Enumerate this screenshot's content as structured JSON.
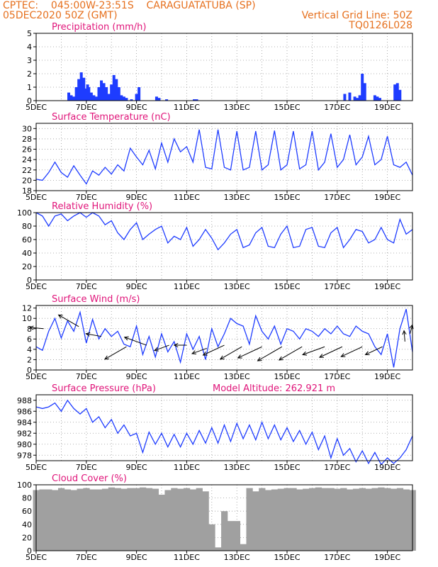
{
  "header": {
    "line1": "CPTEC:    045:00W-23:51S    CARAGUATATUBA (SP)",
    "line2": "05DEC2020 50Z (GMT)",
    "grid_note": "Vertical Grid Line: 50Z",
    "code": "TQ0126L028"
  },
  "colors": {
    "series": "#1e3cff",
    "title": "#e0157a",
    "header": "#e6701e",
    "cloud": "#a0a0a0",
    "frame": "#000000"
  },
  "x_ticks": [
    "5DEC",
    "7DEC",
    "9DEC",
    "11DEC",
    "13DEC",
    "15DEC",
    "17DEC",
    "19DEC"
  ],
  "chart_data": [
    {
      "type": "bar",
      "title": "Precipitation (mm/h)",
      "x": [
        1.3,
        1.4,
        1.5,
        1.6,
        1.7,
        1.8,
        1.9,
        2.0,
        2.05,
        2.1,
        2.2,
        2.3,
        2.4,
        2.5,
        2.6,
        2.7,
        2.8,
        2.9,
        3.0,
        3.1,
        3.2,
        3.3,
        3.4,
        3.5,
        3.6,
        3.8,
        4.0,
        4.1,
        4.8,
        4.9,
        5.2,
        6.3,
        6.4,
        12.3,
        12.5,
        12.7,
        12.8,
        12.9,
        13.0,
        13.1,
        13.5,
        13.6,
        13.7,
        14.3,
        14.4,
        14.5
      ],
      "values": [
        0.6,
        0.4,
        0.3,
        1.0,
        1.6,
        2.1,
        1.7,
        0.9,
        1.2,
        1.0,
        0.6,
        0.4,
        0.3,
        1.0,
        1.5,
        1.3,
        1.0,
        0.5,
        1.2,
        1.9,
        1.6,
        1.0,
        0.4,
        0.3,
        0.2,
        0.1,
        0.5,
        1.0,
        0.3,
        0.2,
        0.1,
        0.1,
        0.1,
        0.5,
        0.6,
        0.3,
        0.2,
        0.4,
        2.0,
        1.3,
        0.4,
        0.3,
        0.2,
        1.2,
        1.3,
        0.8
      ],
      "yticks": [
        "0",
        "1",
        "2",
        "3",
        "4",
        "5"
      ],
      "ylim": [
        0,
        5
      ]
    },
    {
      "type": "line",
      "title": "Surface Temperature (nC)",
      "x": [
        0,
        0.25,
        0.5,
        0.75,
        1.0,
        1.25,
        1.5,
        1.75,
        2.0,
        2.25,
        2.5,
        2.75,
        3.0,
        3.25,
        3.5,
        3.75,
        4.0,
        4.25,
        4.5,
        4.75,
        5.0,
        5.25,
        5.5,
        5.75,
        6.0,
        6.25,
        6.5,
        6.75,
        7.0,
        7.25,
        7.5,
        7.75,
        8.0,
        8.25,
        8.5,
        8.75,
        9.0,
        9.25,
        9.5,
        9.75,
        10.0,
        10.25,
        10.5,
        10.75,
        11.0,
        11.25,
        11.5,
        11.75,
        12.0,
        12.25,
        12.5,
        12.75,
        13.0,
        13.25,
        13.5,
        13.75,
        14.0,
        14.25,
        14.5,
        14.75,
        15.0
      ],
      "values": [
        20.2,
        20.0,
        21.5,
        23.5,
        21.5,
        20.6,
        22.8,
        21.0,
        19.3,
        21.8,
        21.0,
        22.5,
        21.2,
        23.0,
        21.8,
        26.2,
        24.5,
        23.0,
        25.8,
        22.2,
        27.2,
        23.5,
        28.0,
        25.5,
        26.5,
        23.5,
        29.8,
        22.5,
        22.2,
        29.8,
        22.5,
        22.0,
        29.5,
        22.0,
        22.5,
        29.5,
        22.0,
        23.0,
        29.6,
        22.0,
        23.0,
        29.5,
        22.2,
        23.0,
        29.5,
        22.0,
        23.5,
        29.0,
        22.5,
        24.0,
        28.8,
        23.0,
        24.5,
        28.5,
        23.0,
        24.0,
        28.5,
        23.0,
        22.5,
        23.5,
        21.0
      ],
      "yticks": [
        "18",
        "20",
        "22",
        "24",
        "26",
        "28",
        "30"
      ],
      "ylim": [
        18,
        31
      ]
    },
    {
      "type": "line",
      "title": "Relative Humidity (%)",
      "x": [
        0,
        0.25,
        0.5,
        0.75,
        1.0,
        1.25,
        1.5,
        1.75,
        2.0,
        2.25,
        2.5,
        2.75,
        3.0,
        3.25,
        3.5,
        3.75,
        4.0,
        4.25,
        4.5,
        4.75,
        5.0,
        5.25,
        5.5,
        5.75,
        6.0,
        6.25,
        6.5,
        6.75,
        7.0,
        7.25,
        7.5,
        7.75,
        8.0,
        8.25,
        8.5,
        8.75,
        9.0,
        9.25,
        9.5,
        9.75,
        10.0,
        10.25,
        10.5,
        10.75,
        11.0,
        11.25,
        11.5,
        11.75,
        12.0,
        12.25,
        12.5,
        12.75,
        13.0,
        13.25,
        13.5,
        13.75,
        14.0,
        14.25,
        14.5,
        14.75,
        15.0
      ],
      "values": [
        100,
        95,
        80,
        95,
        98,
        88,
        95,
        100,
        93,
        100,
        95,
        82,
        88,
        70,
        60,
        75,
        85,
        60,
        68,
        75,
        80,
        55,
        65,
        60,
        78,
        50,
        60,
        75,
        62,
        45,
        55,
        68,
        75,
        48,
        52,
        70,
        78,
        50,
        48,
        68,
        80,
        48,
        50,
        75,
        78,
        50,
        48,
        70,
        78,
        48,
        60,
        75,
        72,
        55,
        60,
        78,
        60,
        55,
        90,
        68,
        75
      ],
      "yticks": [
        "0",
        "20",
        "40",
        "60",
        "80",
        "100"
      ],
      "ylim": [
        0,
        100
      ]
    },
    {
      "type": "line",
      "title": "Surface Wind (m/s)",
      "x": [
        0,
        0.25,
        0.5,
        0.75,
        1.0,
        1.25,
        1.5,
        1.75,
        2.0,
        2.25,
        2.5,
        2.75,
        3.0,
        3.25,
        3.5,
        3.75,
        4.0,
        4.25,
        4.5,
        4.75,
        5.0,
        5.25,
        5.5,
        5.75,
        6.0,
        6.25,
        6.5,
        6.75,
        7.0,
        7.25,
        7.5,
        7.75,
        8.0,
        8.25,
        8.5,
        8.75,
        9.0,
        9.25,
        9.5,
        9.75,
        10.0,
        10.25,
        10.5,
        10.75,
        11.0,
        11.25,
        11.5,
        11.75,
        12.0,
        12.25,
        12.5,
        12.75,
        13.0,
        13.25,
        13.5,
        13.75,
        14.0,
        14.25,
        14.5,
        14.75,
        15.0
      ],
      "values": [
        4.5,
        3.8,
        7.5,
        10.0,
        6.2,
        9.5,
        7.5,
        11.2,
        5.2,
        9.8,
        6.0,
        8.0,
        6.5,
        7.5,
        5.0,
        4.5,
        8.5,
        3.0,
        6.5,
        2.5,
        7.0,
        3.5,
        5.5,
        1.5,
        7.0,
        4.0,
        6.5,
        2.0,
        8.0,
        4.5,
        7.0,
        10.0,
        9.0,
        8.5,
        5.0,
        10.5,
        7.5,
        6.0,
        8.5,
        5.0,
        8.0,
        7.5,
        6.0,
        8.0,
        7.5,
        6.5,
        8.0,
        7.0,
        8.5,
        7.0,
        6.5,
        8.5,
        7.5,
        7.0,
        4.5,
        3.0,
        7.0,
        0.5,
        8.0,
        11.8,
        3.5
      ],
      "yticks": [
        "0",
        "2",
        "4",
        "6",
        "8",
        "10",
        "12"
      ],
      "ylim": [
        0,
        12.5
      ],
      "vectors": [
        [
          0.3,
          8.0,
          175,
          0.9
        ],
        [
          1.7,
          8.4,
          150,
          1.5
        ],
        [
          2.6,
          6.5,
          170,
          1.0
        ],
        [
          3.6,
          4.5,
          210,
          1.6
        ],
        [
          4.4,
          4.8,
          160,
          1.5
        ],
        [
          5.3,
          4.8,
          200,
          1.0
        ],
        [
          6.0,
          4.8,
          180,
          0.8
        ],
        [
          6.8,
          4.2,
          200,
          1.0
        ],
        [
          7.5,
          4.8,
          205,
          1.5
        ],
        [
          8.2,
          4.5,
          210,
          1.6
        ],
        [
          9.0,
          4.5,
          205,
          1.7
        ],
        [
          9.8,
          4.5,
          210,
          1.8
        ],
        [
          10.6,
          4.5,
          210,
          1.7
        ],
        [
          11.5,
          4.5,
          200,
          1.5
        ],
        [
          12.2,
          4.5,
          205,
          1.6
        ],
        [
          13.0,
          4.5,
          205,
          1.5
        ],
        [
          13.8,
          4.5,
          205,
          1.2
        ],
        [
          14.7,
          5.5,
          95,
          0.7
        ],
        [
          14.9,
          7.0,
          75,
          0.6
        ]
      ]
    },
    {
      "type": "line",
      "title": "Surface Pressure (hPa)",
      "annotation": "Model Altitude: 262.921  m",
      "x": [
        0,
        0.25,
        0.5,
        0.75,
        1.0,
        1.25,
        1.5,
        1.75,
        2.0,
        2.25,
        2.5,
        2.75,
        3.0,
        3.25,
        3.5,
        3.75,
        4.0,
        4.25,
        4.5,
        4.75,
        5.0,
        5.25,
        5.5,
        5.75,
        6.0,
        6.25,
        6.5,
        6.75,
        7.0,
        7.25,
        7.5,
        7.75,
        8.0,
        8.25,
        8.5,
        8.75,
        9.0,
        9.25,
        9.5,
        9.75,
        10.0,
        10.25,
        10.5,
        10.75,
        11.0,
        11.25,
        11.5,
        11.75,
        12.0,
        12.25,
        12.5,
        12.75,
        13.0,
        13.25,
        13.5,
        13.75,
        14.0,
        14.25,
        14.5,
        14.75,
        15.0
      ],
      "values": [
        986.8,
        986.5,
        986.8,
        987.5,
        986.0,
        988.0,
        986.5,
        985.5,
        986.5,
        984.0,
        985.0,
        983.0,
        984.5,
        982.0,
        983.5,
        981.5,
        982.0,
        978.5,
        982.2,
        980.0,
        982.0,
        979.5,
        981.8,
        979.5,
        982.0,
        980.0,
        982.5,
        980.2,
        983.0,
        980.2,
        983.5,
        980.5,
        983.8,
        981.0,
        983.5,
        980.8,
        984.0,
        981.0,
        983.5,
        980.8,
        983.0,
        980.5,
        982.5,
        980.0,
        982.2,
        979.0,
        981.5,
        977.5,
        981.0,
        978.0,
        979.2,
        976.8,
        978.8,
        976.5,
        978.5,
        976.3,
        977.5,
        976.5,
        977.5,
        979.0,
        981.5
      ],
      "yticks": [
        "978",
        "980",
        "982",
        "984",
        "986",
        "988"
      ],
      "ylim": [
        977,
        989
      ]
    },
    {
      "type": "bar",
      "title": "Cloud Cover (%)",
      "x": [
        0,
        0.25,
        0.5,
        0.75,
        1.0,
        1.25,
        1.5,
        1.75,
        2.0,
        2.25,
        2.5,
        2.75,
        3.0,
        3.25,
        3.5,
        3.75,
        4.0,
        4.25,
        4.5,
        4.75,
        5.0,
        5.25,
        5.5,
        5.75,
        6.0,
        6.25,
        6.5,
        6.75,
        7.0,
        7.25,
        7.5,
        7.75,
        8.0,
        8.25,
        8.5,
        8.75,
        9.0,
        9.25,
        9.5,
        9.75,
        10.0,
        10.25,
        10.5,
        10.75,
        11.0,
        11.25,
        11.5,
        11.75,
        12.0,
        12.25,
        12.5,
        12.75,
        13.0,
        13.25,
        13.5,
        13.75,
        14.0,
        14.25,
        14.5,
        14.75,
        15.0
      ],
      "values": [
        92,
        93,
        93,
        92,
        95,
        93,
        92,
        94,
        95,
        93,
        93,
        94,
        96,
        95,
        94,
        95,
        95,
        96,
        95,
        94,
        85,
        92,
        95,
        94,
        95,
        93,
        95,
        90,
        40,
        5,
        60,
        45,
        45,
        10,
        95,
        90,
        95,
        92,
        93,
        94,
        95,
        95,
        93,
        94,
        95,
        96,
        95,
        95,
        94,
        95,
        93,
        94,
        95,
        94,
        95,
        96,
        95,
        94,
        95,
        93,
        92
      ],
      "yticks": [
        "0",
        "20",
        "40",
        "60",
        "80",
        "100"
      ],
      "ylim": [
        0,
        100
      ]
    }
  ]
}
